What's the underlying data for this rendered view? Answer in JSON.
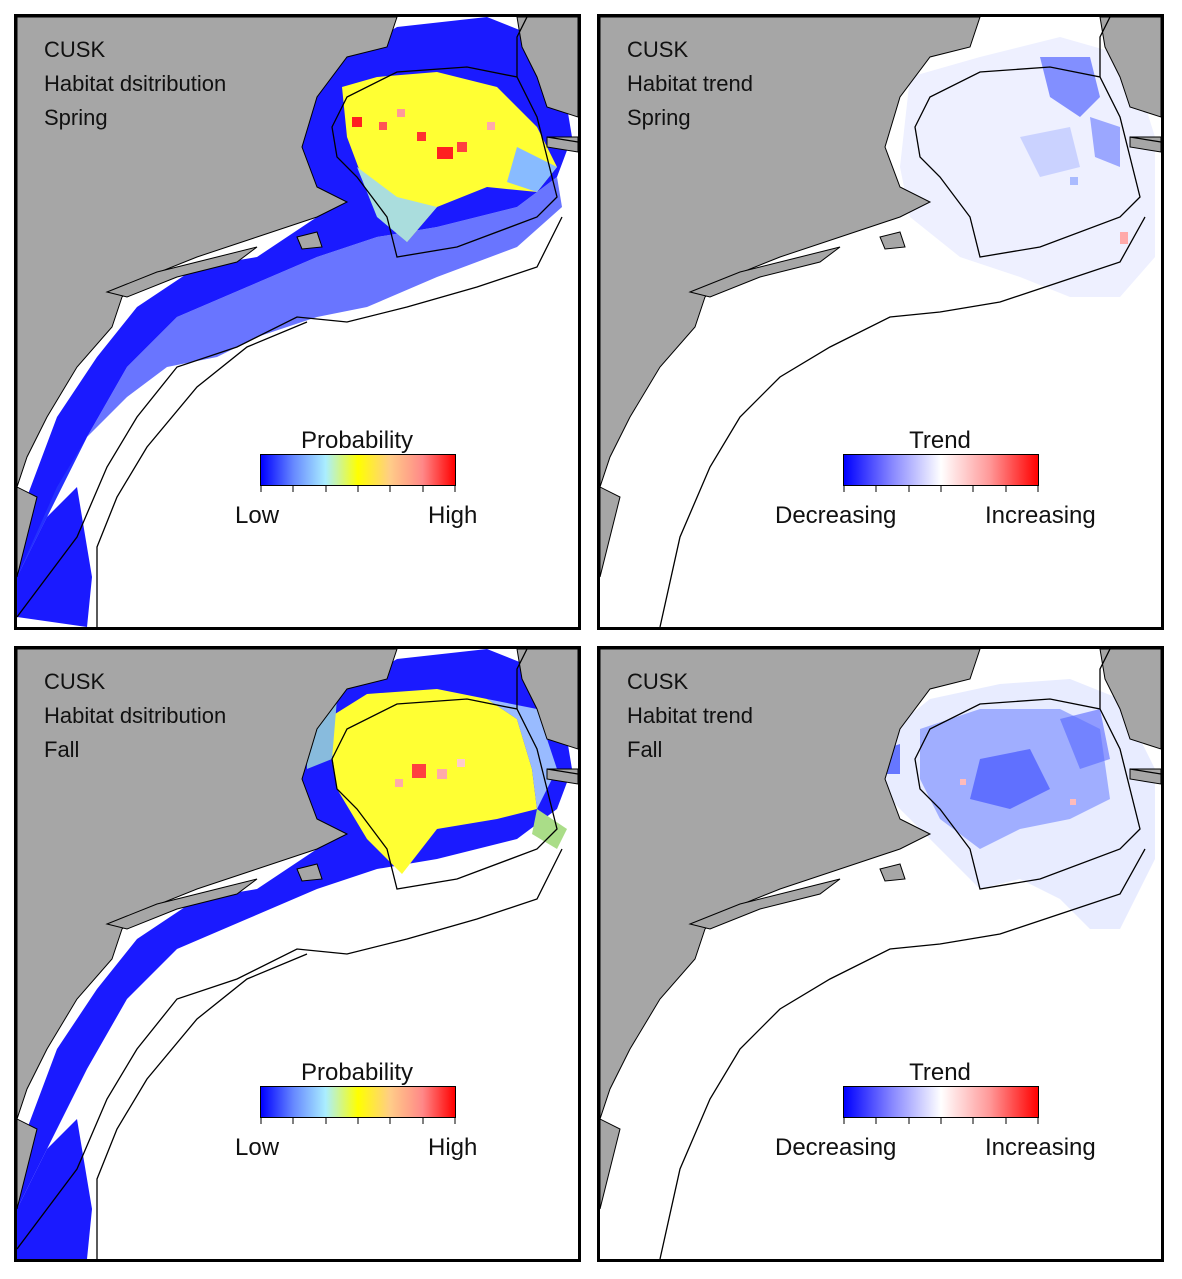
{
  "panels": [
    {
      "species": "CUSK",
      "metric": "Habitat dsitribution",
      "season": "Spring",
      "legend": {
        "title": "Probability",
        "low": "Low",
        "high": "High",
        "gradient": [
          "#0000ff",
          "#6688ff",
          "#aaeeff",
          "#ffff00",
          "#ffcc88",
          "#ff8888",
          "#ff0000"
        ]
      }
    },
    {
      "species": "CUSK",
      "metric": "Habitat trend",
      "season": "Spring",
      "legend": {
        "title": "Trend",
        "low": "Decreasing",
        "high": "Increasing",
        "gradient": [
          "#0000ff",
          "#8888ff",
          "#ffffff",
          "#ff9999",
          "#ff0000"
        ]
      }
    },
    {
      "species": "CUSK",
      "metric": "Habitat dsitribution",
      "season": "Fall",
      "legend": {
        "title": "Probability",
        "low": "Low",
        "high": "High",
        "gradient": [
          "#0000ff",
          "#6688ff",
          "#aaeeff",
          "#ffff00",
          "#ffcc88",
          "#ff8888",
          "#ff0000"
        ]
      }
    },
    {
      "species": "CUSK",
      "metric": "Habitat trend",
      "season": "Fall",
      "legend": {
        "title": "Trend",
        "low": "Decreasing",
        "high": "Increasing",
        "gradient": [
          "#0000ff",
          "#8888ff",
          "#ffffff",
          "#ff9999",
          "#ff0000"
        ]
      }
    }
  ],
  "colors": {
    "land": "#a6a6a6",
    "ocean": "#ffffff",
    "low_prob": "#1a1aff",
    "mid_prob": "#ffff33",
    "high_prob": "#ff2020"
  }
}
